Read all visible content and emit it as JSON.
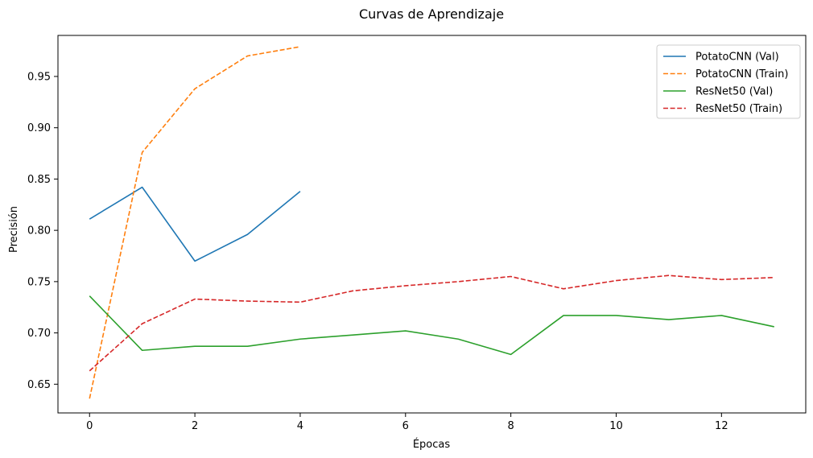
{
  "chart_data": {
    "type": "line",
    "title": "Curvas de Aprendizaje",
    "xlabel": "Épocas",
    "ylabel": "Precisión",
    "xlim": [
      -0.6,
      13.6
    ],
    "ylim": [
      0.622,
      0.99
    ],
    "xticks": [
      0,
      2,
      4,
      6,
      8,
      10,
      12
    ],
    "yticks": [
      0.65,
      0.7,
      0.75,
      0.8,
      0.85,
      0.9,
      0.95
    ],
    "grid": false,
    "legend_position": "top-right",
    "series": [
      {
        "name": "PotatoCNN (Val)",
        "color": "#1f77b4",
        "dash": "solid",
        "x": [
          0,
          1,
          2,
          3,
          4
        ],
        "values": [
          0.811,
          0.842,
          0.77,
          0.796,
          0.838
        ]
      },
      {
        "name": "PotatoCNN (Train)",
        "color": "#ff7f0e",
        "dash": "dashed",
        "x": [
          0,
          1,
          2,
          3,
          4
        ],
        "values": [
          0.636,
          0.876,
          0.938,
          0.97,
          0.979
        ]
      },
      {
        "name": "ResNet50 (Val)",
        "color": "#2ca02c",
        "dash": "solid",
        "x": [
          0,
          1,
          2,
          3,
          4,
          5,
          6,
          7,
          8,
          9,
          10,
          11,
          12,
          13
        ],
        "values": [
          0.736,
          0.683,
          0.687,
          0.687,
          0.694,
          0.698,
          0.702,
          0.694,
          0.679,
          0.717,
          0.717,
          0.713,
          0.717,
          0.706
        ]
      },
      {
        "name": "ResNet50 (Train)",
        "color": "#d62728",
        "dash": "dashed",
        "x": [
          0,
          1,
          2,
          3,
          4,
          5,
          6,
          7,
          8,
          9,
          10,
          11,
          12,
          13
        ],
        "values": [
          0.663,
          0.709,
          0.733,
          0.731,
          0.73,
          0.741,
          0.746,
          0.75,
          0.755,
          0.743,
          0.751,
          0.756,
          0.752,
          0.754
        ]
      }
    ]
  }
}
